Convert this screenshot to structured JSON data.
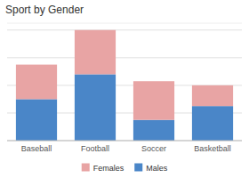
{
  "chart_data": {
    "type": "bar",
    "stacked": true,
    "title": "Sport by Gender",
    "categories": [
      "Baseball",
      "Football",
      "Soccer",
      "Basketball"
    ],
    "series": [
      {
        "name": "Males",
        "color": "#4a86c8",
        "values": [
          30,
          48,
          15,
          25
        ]
      },
      {
        "name": "Females",
        "color": "#e8a4a4",
        "values": [
          25,
          32,
          28,
          15
        ]
      }
    ],
    "ylim": [
      0,
      85
    ],
    "yticks": [
      0,
      20,
      40,
      60,
      80
    ],
    "grid": true,
    "tick_labels": "x",
    "legend": "bottom"
  }
}
